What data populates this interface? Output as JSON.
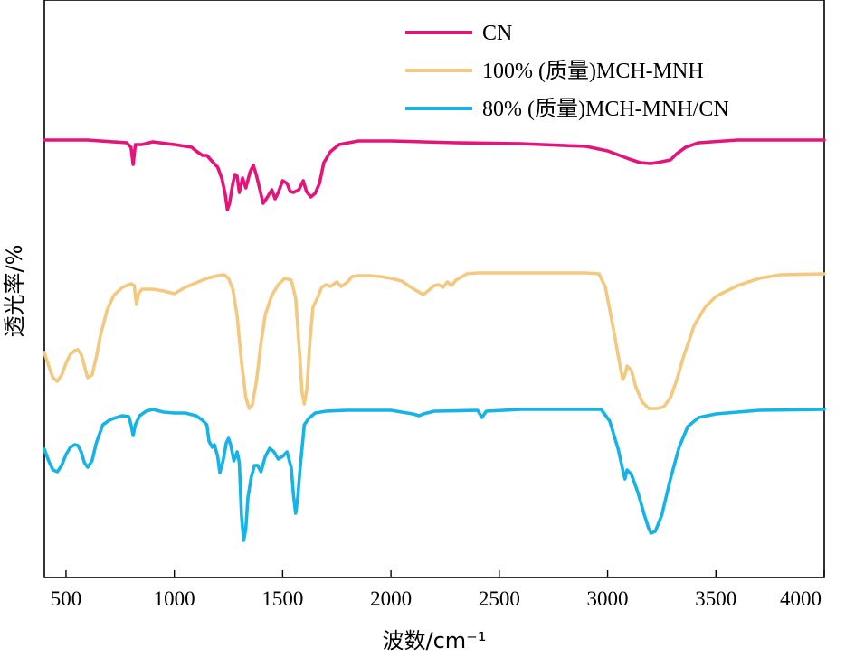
{
  "chart_data": {
    "type": "line",
    "xlabel": "波数/cm⁻¹",
    "ylabel": "透光率/%",
    "xlim": [
      400,
      4000
    ],
    "xticks": [
      500,
      1000,
      1500,
      2000,
      2500,
      3000,
      3500,
      4000
    ],
    "xtick_labels": [
      "500",
      "1000",
      "1500",
      "2000",
      "2500",
      "3000",
      "3500",
      "4000"
    ],
    "yticks_shown": false,
    "grid": false,
    "legend_position": "top-right",
    "series": [
      {
        "name": "CN",
        "color": "#E5137A",
        "points": [
          [
            400,
            155
          ],
          [
            600,
            155
          ],
          [
            780,
            158
          ],
          [
            800,
            163
          ],
          [
            810,
            182
          ],
          [
            820,
            160
          ],
          [
            850,
            160
          ],
          [
            900,
            157
          ],
          [
            1000,
            160
          ],
          [
            1080,
            163
          ],
          [
            1100,
            167
          ],
          [
            1130,
            172
          ],
          [
            1150,
            172
          ],
          [
            1180,
            180
          ],
          [
            1200,
            185
          ],
          [
            1220,
            198
          ],
          [
            1235,
            215
          ],
          [
            1245,
            232
          ],
          [
            1255,
            225
          ],
          [
            1270,
            203
          ],
          [
            1280,
            193
          ],
          [
            1290,
            195
          ],
          [
            1300,
            213
          ],
          [
            1315,
            197
          ],
          [
            1330,
            208
          ],
          [
            1350,
            190
          ],
          [
            1365,
            183
          ],
          [
            1380,
            195
          ],
          [
            1395,
            210
          ],
          [
            1410,
            225
          ],
          [
            1430,
            218
          ],
          [
            1450,
            210
          ],
          [
            1465,
            220
          ],
          [
            1480,
            213
          ],
          [
            1500,
            200
          ],
          [
            1520,
            203
          ],
          [
            1535,
            212
          ],
          [
            1550,
            213
          ],
          [
            1575,
            210
          ],
          [
            1595,
            200
          ],
          [
            1610,
            212
          ],
          [
            1630,
            218
          ],
          [
            1650,
            214
          ],
          [
            1670,
            203
          ],
          [
            1690,
            180
          ],
          [
            1720,
            168
          ],
          [
            1760,
            160
          ],
          [
            1850,
            156
          ],
          [
            2000,
            156
          ],
          [
            2300,
            158
          ],
          [
            2600,
            159
          ],
          [
            2900,
            162
          ],
          [
            3000,
            167
          ],
          [
            3100,
            176
          ],
          [
            3150,
            180
          ],
          [
            3200,
            181
          ],
          [
            3250,
            179
          ],
          [
            3290,
            177
          ],
          [
            3320,
            170
          ],
          [
            3360,
            163
          ],
          [
            3420,
            158
          ],
          [
            3600,
            155
          ],
          [
            4000,
            155
          ]
        ]
      },
      {
        "name": "100% (质量)MCH-MNH",
        "color": "#F5C880",
        "points": [
          [
            400,
            390
          ],
          [
            420,
            405
          ],
          [
            440,
            418
          ],
          [
            460,
            422
          ],
          [
            480,
            415
          ],
          [
            500,
            402
          ],
          [
            520,
            392
          ],
          [
            540,
            388
          ],
          [
            555,
            387
          ],
          [
            570,
            392
          ],
          [
            585,
            405
          ],
          [
            600,
            418
          ],
          [
            620,
            415
          ],
          [
            640,
            395
          ],
          [
            660,
            370
          ],
          [
            690,
            343
          ],
          [
            720,
            327
          ],
          [
            760,
            318
          ],
          [
            800,
            314
          ],
          [
            815,
            316
          ],
          [
            825,
            337
          ],
          [
            835,
            325
          ],
          [
            850,
            320
          ],
          [
            900,
            320
          ],
          [
            950,
            322
          ],
          [
            1000,
            325
          ],
          [
            1050,
            318
          ],
          [
            1100,
            313
          ],
          [
            1150,
            308
          ],
          [
            1200,
            305
          ],
          [
            1230,
            304
          ],
          [
            1250,
            308
          ],
          [
            1270,
            320
          ],
          [
            1290,
            350
          ],
          [
            1310,
            400
          ],
          [
            1330,
            440
          ],
          [
            1345,
            452
          ],
          [
            1360,
            448
          ],
          [
            1380,
            420
          ],
          [
            1400,
            380
          ],
          [
            1420,
            348
          ],
          [
            1450,
            327
          ],
          [
            1480,
            315
          ],
          [
            1510,
            308
          ],
          [
            1540,
            310
          ],
          [
            1560,
            330
          ],
          [
            1575,
            380
          ],
          [
            1590,
            435
          ],
          [
            1600,
            447
          ],
          [
            1612,
            430
          ],
          [
            1625,
            380
          ],
          [
            1640,
            340
          ],
          [
            1660,
            330
          ],
          [
            1680,
            318
          ],
          [
            1700,
            315
          ],
          [
            1720,
            317
          ],
          [
            1750,
            312
          ],
          [
            1770,
            317
          ],
          [
            1800,
            312
          ],
          [
            1820,
            306
          ],
          [
            1850,
            305
          ],
          [
            1900,
            305
          ],
          [
            1950,
            306
          ],
          [
            2000,
            308
          ],
          [
            2050,
            311
          ],
          [
            2080,
            316
          ],
          [
            2120,
            322
          ],
          [
            2150,
            326
          ],
          [
            2180,
            320
          ],
          [
            2200,
            316
          ],
          [
            2220,
            315
          ],
          [
            2240,
            318
          ],
          [
            2260,
            312
          ],
          [
            2280,
            316
          ],
          [
            2300,
            310
          ],
          [
            2350,
            303
          ],
          [
            2400,
            302
          ],
          [
            2500,
            302
          ],
          [
            2700,
            302
          ],
          [
            2900,
            302
          ],
          [
            2960,
            303
          ],
          [
            2990,
            318
          ],
          [
            3020,
            355
          ],
          [
            3050,
            395
          ],
          [
            3070,
            420
          ],
          [
            3080,
            415
          ],
          [
            3090,
            405
          ],
          [
            3110,
            410
          ],
          [
            3130,
            428
          ],
          [
            3160,
            445
          ],
          [
            3190,
            452
          ],
          [
            3230,
            452
          ],
          [
            3260,
            450
          ],
          [
            3290,
            440
          ],
          [
            3320,
            420
          ],
          [
            3350,
            395
          ],
          [
            3400,
            360
          ],
          [
            3450,
            340
          ],
          [
            3500,
            328
          ],
          [
            3600,
            316
          ],
          [
            3700,
            308
          ],
          [
            3800,
            304
          ],
          [
            4000,
            303
          ]
        ]
      },
      {
        "name": "80% (质量)MCH-MNH/CN",
        "color": "#16B3E8",
        "points": [
          [
            400,
            497
          ],
          [
            420,
            510
          ],
          [
            440,
            520
          ],
          [
            460,
            522
          ],
          [
            480,
            515
          ],
          [
            500,
            503
          ],
          [
            520,
            495
          ],
          [
            540,
            492
          ],
          [
            555,
            493
          ],
          [
            570,
            500
          ],
          [
            585,
            512
          ],
          [
            600,
            517
          ],
          [
            620,
            510
          ],
          [
            640,
            490
          ],
          [
            670,
            470
          ],
          [
            700,
            465
          ],
          [
            720,
            463
          ],
          [
            760,
            460
          ],
          [
            790,
            461
          ],
          [
            800,
            470
          ],
          [
            810,
            482
          ],
          [
            820,
            470
          ],
          [
            840,
            460
          ],
          [
            870,
            455
          ],
          [
            900,
            453
          ],
          [
            950,
            456
          ],
          [
            1000,
            457
          ],
          [
            1050,
            457
          ],
          [
            1100,
            460
          ],
          [
            1130,
            465
          ],
          [
            1150,
            470
          ],
          [
            1160,
            488
          ],
          [
            1175,
            495
          ],
          [
            1185,
            492
          ],
          [
            1200,
            505
          ],
          [
            1210,
            523
          ],
          [
            1225,
            510
          ],
          [
            1240,
            490
          ],
          [
            1250,
            485
          ],
          [
            1260,
            492
          ],
          [
            1275,
            510
          ],
          [
            1290,
            500
          ],
          [
            1300,
            512
          ],
          [
            1310,
            570
          ],
          [
            1320,
            598
          ],
          [
            1330,
            585
          ],
          [
            1340,
            550
          ],
          [
            1355,
            528
          ],
          [
            1370,
            515
          ],
          [
            1385,
            515
          ],
          [
            1400,
            522
          ],
          [
            1420,
            505
          ],
          [
            1440,
            496
          ],
          [
            1460,
            500
          ],
          [
            1480,
            508
          ],
          [
            1500,
            505
          ],
          [
            1520,
            500
          ],
          [
            1540,
            518
          ],
          [
            1550,
            548
          ],
          [
            1560,
            568
          ],
          [
            1570,
            550
          ],
          [
            1580,
            520
          ],
          [
            1600,
            470
          ],
          [
            1620,
            463
          ],
          [
            1650,
            457
          ],
          [
            1700,
            455
          ],
          [
            1800,
            454
          ],
          [
            2000,
            454
          ],
          [
            2100,
            458
          ],
          [
            2130,
            460
          ],
          [
            2150,
            458
          ],
          [
            2200,
            455
          ],
          [
            2400,
            454
          ],
          [
            2420,
            462
          ],
          [
            2440,
            455
          ],
          [
            2600,
            453
          ],
          [
            2800,
            453
          ],
          [
            2970,
            453
          ],
          [
            3010,
            466
          ],
          [
            3050,
            498
          ],
          [
            3070,
            520
          ],
          [
            3080,
            530
          ],
          [
            3090,
            520
          ],
          [
            3110,
            525
          ],
          [
            3140,
            545
          ],
          [
            3170,
            570
          ],
          [
            3190,
            585
          ],
          [
            3200,
            590
          ],
          [
            3220,
            588
          ],
          [
            3250,
            570
          ],
          [
            3290,
            530
          ],
          [
            3330,
            495
          ],
          [
            3370,
            472
          ],
          [
            3420,
            462
          ],
          [
            3500,
            458
          ],
          [
            3600,
            456
          ],
          [
            3700,
            454
          ],
          [
            4000,
            453
          ]
        ]
      }
    ]
  }
}
